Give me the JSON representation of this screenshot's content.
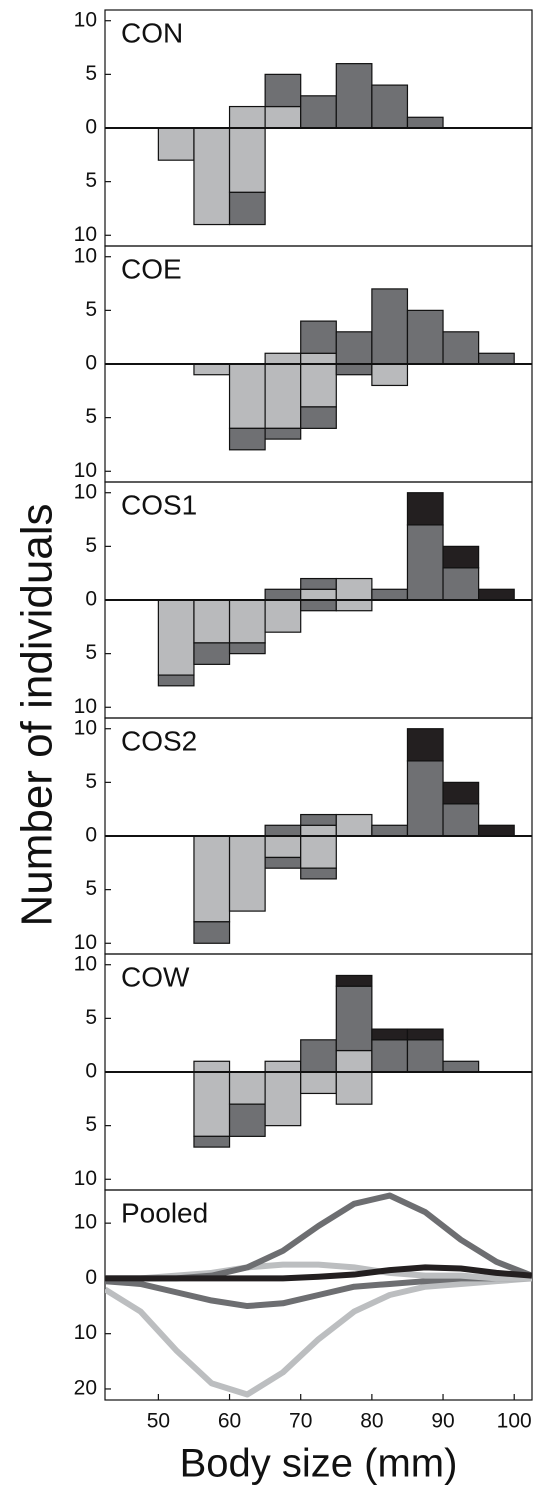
{
  "chart_data": [
    {
      "type": "histogram",
      "title": "CON",
      "bins": [
        45,
        50,
        55,
        60,
        65,
        70,
        75,
        80,
        85,
        90,
        95,
        100
      ],
      "ylim": [
        -11,
        11
      ],
      "yticks": [
        {
          "value": -10,
          "label": "10"
        },
        {
          "value": -5,
          "label": "5"
        },
        0,
        5,
        10
      ],
      "series": [
        {
          "color": "#b9babc",
          "values": [
            0,
            0,
            0,
            2,
            2,
            0,
            0,
            0,
            0,
            0,
            0
          ]
        },
        {
          "color": "#6f7073",
          "values": [
            0,
            0,
            0,
            0,
            3,
            3,
            6,
            4,
            1,
            0,
            0
          ]
        },
        {
          "color": "#b9babc",
          "values": [
            0,
            -3,
            -9,
            -6,
            0,
            0,
            0,
            0,
            0,
            0,
            0
          ]
        },
        {
          "color": "#6f7073",
          "values": [
            0,
            0,
            0,
            -3,
            0,
            0,
            0,
            0,
            0,
            0,
            0
          ]
        }
      ]
    },
    {
      "type": "histogram",
      "title": "COE",
      "bins": [
        45,
        50,
        55,
        60,
        65,
        70,
        75,
        80,
        85,
        90,
        95,
        100
      ],
      "ylim": [
        -11,
        11
      ],
      "yticks": [
        {
          "value": -10,
          "label": "10"
        },
        {
          "value": -5,
          "label": "5"
        },
        0,
        5,
        10
      ],
      "series": [
        {
          "color": "#b9babc",
          "values": [
            0,
            0,
            0,
            0,
            1,
            1,
            0,
            0,
            0,
            0,
            0
          ]
        },
        {
          "color": "#6f7073",
          "values": [
            0,
            0,
            0,
            0,
            0,
            3,
            3,
            7,
            5,
            3,
            1
          ]
        },
        {
          "color": "#b9babc",
          "values": [
            0,
            0,
            -1,
            -6,
            -6,
            -4,
            0,
            -2,
            0,
            0,
            0
          ]
        },
        {
          "color": "#6f7073",
          "values": [
            0,
            0,
            0,
            -2,
            -1,
            -2,
            -1,
            0,
            0,
            0,
            0
          ]
        }
      ]
    },
    {
      "type": "histogram",
      "title": "COS1",
      "bins": [
        45,
        50,
        55,
        60,
        65,
        70,
        75,
        80,
        85,
        90,
        95,
        100
      ],
      "ylim": [
        -11,
        11
      ],
      "yticks": [
        {
          "value": -10,
          "label": "10"
        },
        {
          "value": -5,
          "label": "5"
        },
        0,
        5,
        10
      ],
      "series": [
        {
          "color": "#b9babc",
          "values": [
            0,
            0,
            0,
            0,
            0,
            1,
            2,
            0,
            0,
            0,
            0
          ]
        },
        {
          "color": "#6f7073",
          "values": [
            0,
            0,
            0,
            0,
            1,
            1,
            0,
            1,
            7,
            3,
            0
          ]
        },
        {
          "color": "#231f20",
          "values": [
            0,
            0,
            0,
            0,
            0,
            0,
            0,
            0,
            3,
            2,
            1
          ]
        },
        {
          "color": "#b9babc",
          "values": [
            0,
            -7,
            -4,
            -4,
            -3,
            0,
            -1,
            0,
            0,
            0,
            0
          ]
        },
        {
          "color": "#6f7073",
          "values": [
            0,
            -1,
            -2,
            -1,
            0,
            -1,
            0,
            0,
            0,
            0,
            0
          ]
        }
      ]
    },
    {
      "type": "histogram",
      "title": "COS2",
      "bins": [
        45,
        50,
        55,
        60,
        65,
        70,
        75,
        80,
        85,
        90,
        95,
        100
      ],
      "ylim": [
        -11,
        11
      ],
      "yticks": [
        {
          "value": -10,
          "label": "10"
        },
        {
          "value": -5,
          "label": "5"
        },
        0,
        5,
        10
      ],
      "series": [
        {
          "color": "#b9babc",
          "values": [
            0,
            0,
            0,
            0,
            0,
            1,
            2,
            0,
            0,
            0,
            0
          ]
        },
        {
          "color": "#6f7073",
          "values": [
            0,
            0,
            0,
            0,
            1,
            1,
            0,
            1,
            7,
            3,
            0
          ]
        },
        {
          "color": "#231f20",
          "values": [
            0,
            0,
            0,
            0,
            0,
            0,
            0,
            0,
            3,
            2,
            1
          ]
        },
        {
          "color": "#b9babc",
          "values": [
            0,
            0,
            -8,
            -7,
            -2,
            -3,
            0,
            0,
            0,
            0,
            0
          ]
        },
        {
          "color": "#6f7073",
          "values": [
            0,
            0,
            -2,
            0,
            -1,
            -1,
            0,
            0,
            0,
            0,
            0
          ]
        }
      ]
    },
    {
      "type": "histogram",
      "title": "COW",
      "bins": [
        45,
        50,
        55,
        60,
        65,
        70,
        75,
        80,
        85,
        90,
        95,
        100
      ],
      "ylim": [
        -11,
        11
      ],
      "yticks": [
        {
          "value": -10,
          "label": "10"
        },
        {
          "value": -5,
          "label": "5"
        },
        0,
        5,
        10
      ],
      "series": [
        {
          "color": "#b9babc",
          "values": [
            0,
            0,
            1,
            0,
            1,
            0,
            2,
            0,
            0,
            0,
            0
          ]
        },
        {
          "color": "#6f7073",
          "values": [
            0,
            0,
            0,
            0,
            0,
            3,
            6,
            3,
            3,
            1,
            0
          ]
        },
        {
          "color": "#231f20",
          "values": [
            0,
            0,
            0,
            0,
            0,
            0,
            1,
            1,
            1,
            0,
            0
          ]
        },
        {
          "color": "#b9babc",
          "values": [
            0,
            0,
            -6,
            -3,
            -5,
            -2,
            -3,
            0,
            0,
            0,
            0
          ]
        },
        {
          "color": "#6f7073",
          "values": [
            0,
            0,
            -1,
            -3,
            0,
            0,
            0,
            0,
            0,
            0,
            0
          ]
        }
      ]
    },
    {
      "type": "line",
      "title": "Pooled",
      "xlabel": "Body size (mm)",
      "ylabel": "Number of individuals",
      "x": [
        42.5,
        47.5,
        52.5,
        57.5,
        62.5,
        67.5,
        72.5,
        77.5,
        82.5,
        87.5,
        92.5,
        97.5,
        102.5
      ],
      "xlim": [
        42.5,
        102.5
      ],
      "xticks": [
        50,
        60,
        70,
        80,
        90,
        100
      ],
      "ylim": [
        -22,
        16
      ],
      "yticks": [
        {
          "value": -20,
          "label": "20"
        },
        {
          "value": -10,
          "label": "10"
        },
        0,
        10
      ],
      "series": [
        {
          "color": "#bcbec0",
          "values": [
            -2,
            -6,
            -13,
            -19,
            -21,
            -17,
            -11,
            -6,
            -3,
            -1.5,
            -1,
            -0.5,
            0
          ]
        },
        {
          "color": "#6d6e71",
          "values": [
            -0.5,
            -1,
            -2.5,
            -4,
            -5,
            -4.5,
            -3,
            -1.5,
            -1,
            -0.5,
            0,
            0,
            0
          ]
        },
        {
          "color": "#bcbec0",
          "values": [
            0,
            0,
            0.5,
            1,
            2,
            2.5,
            2.5,
            2,
            1,
            0.5,
            0.5,
            0,
            0
          ]
        },
        {
          "color": "#6d6e71",
          "values": [
            0,
            0,
            0,
            0.5,
            2,
            5,
            9.5,
            13.5,
            15,
            12,
            7,
            3,
            0.5
          ]
        },
        {
          "color": "#231f20",
          "values": [
            0,
            0,
            0,
            0,
            0,
            0,
            0.3,
            0.7,
            1.5,
            2,
            1.8,
            1,
            0.5
          ]
        }
      ]
    }
  ]
}
